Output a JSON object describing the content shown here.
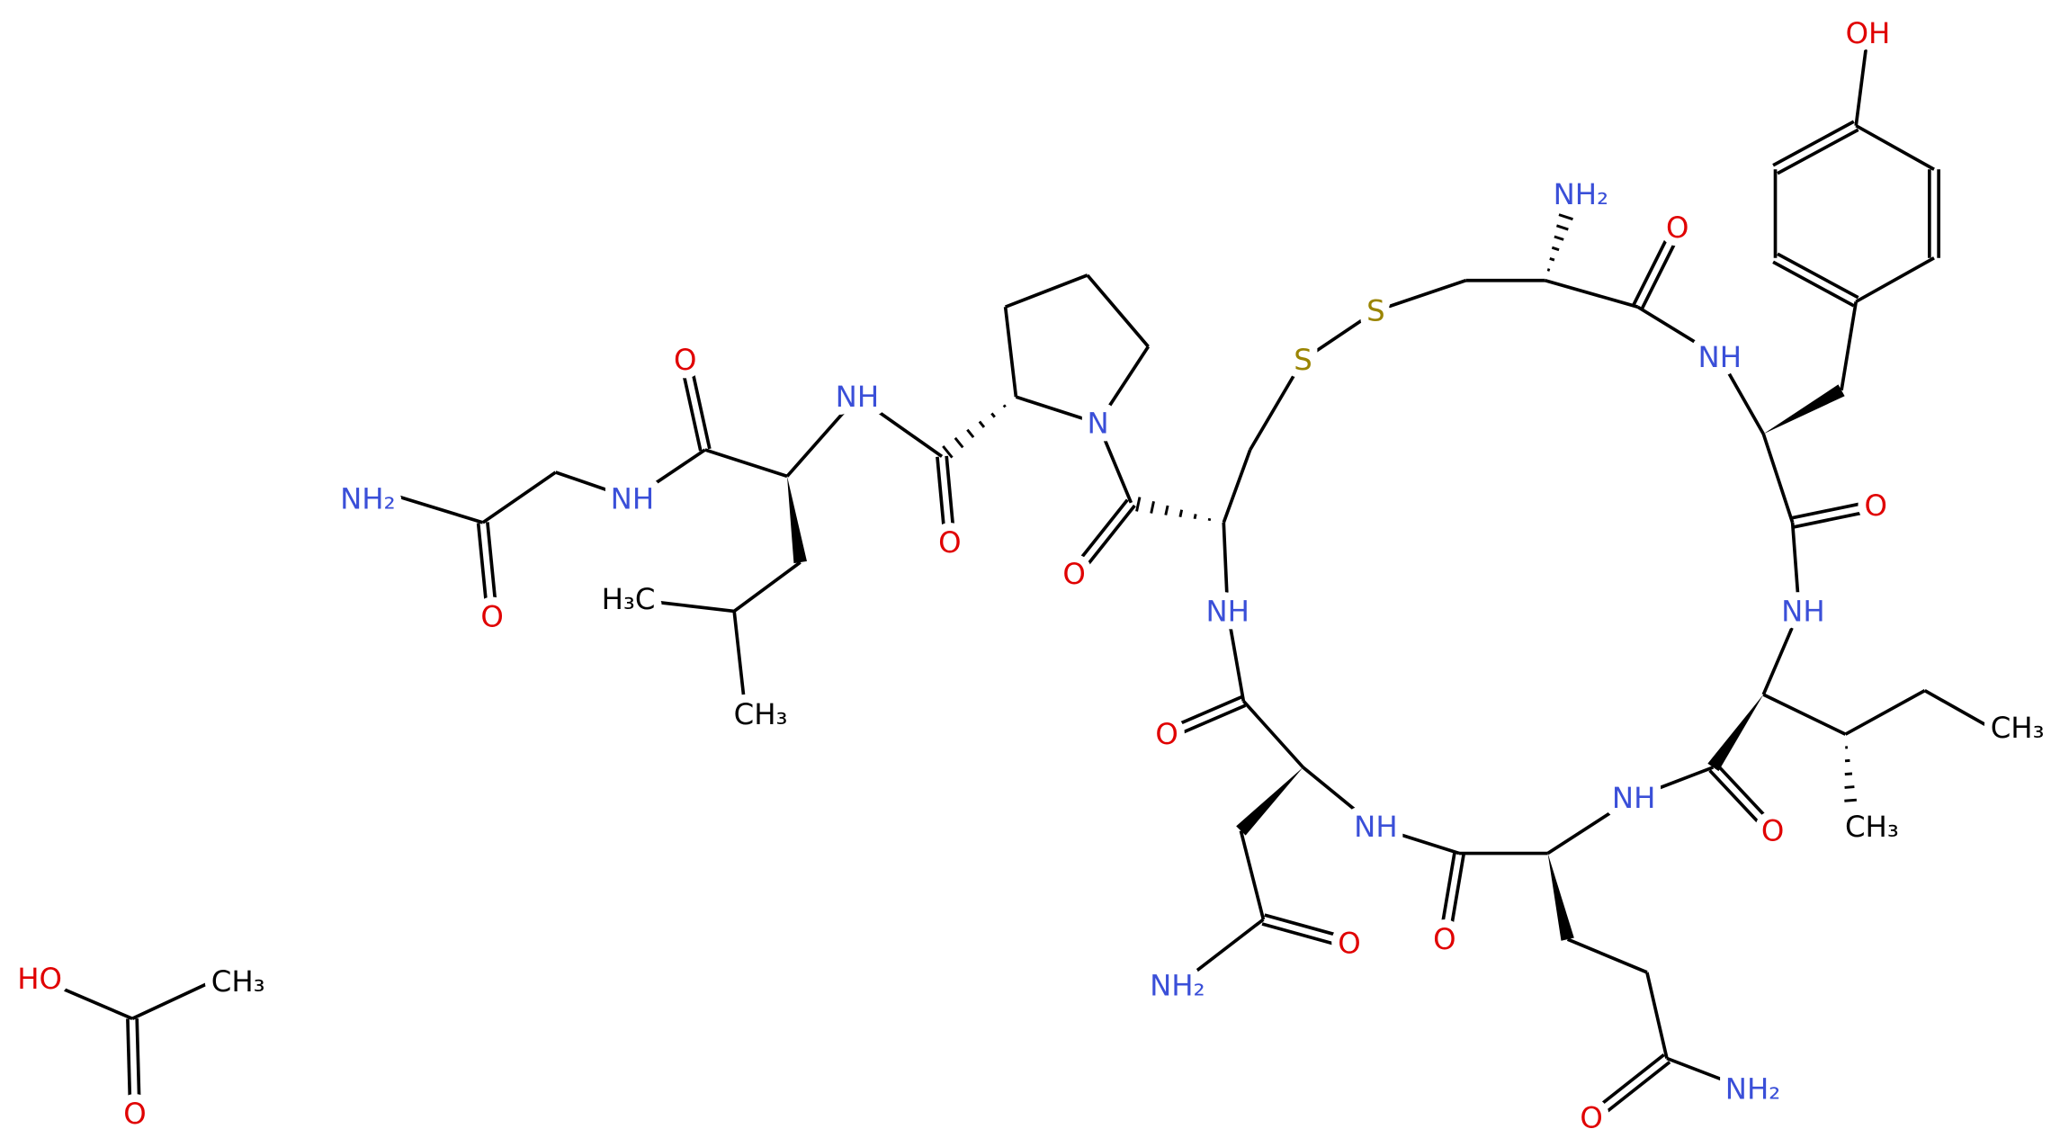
{
  "atoms": [
    {
      "label": "OH",
      "element": "O"
    },
    {
      "label": "NH₂",
      "element": "N"
    },
    {
      "label": "O",
      "element": "O"
    },
    {
      "label": "S",
      "element": "S"
    },
    {
      "label": "S",
      "element": "S"
    },
    {
      "label": "NH",
      "element": "N"
    },
    {
      "label": "O",
      "element": "O"
    },
    {
      "label": "NH",
      "element": "N"
    },
    {
      "label": "CH₃",
      "element": "C"
    },
    {
      "label": "CH₃",
      "element": "C"
    },
    {
      "label": "O",
      "element": "O"
    },
    {
      "label": "NH",
      "element": "N"
    },
    {
      "label": "NH",
      "element": "N"
    },
    {
      "label": "O",
      "element": "O"
    },
    {
      "label": "NH₂",
      "element": "N"
    },
    {
      "label": "O",
      "element": "O"
    },
    {
      "label": "NH₂",
      "element": "N"
    },
    {
      "label": "O",
      "element": "O"
    },
    {
      "label": "O",
      "element": "O"
    },
    {
      "label": "NH",
      "element": "N"
    },
    {
      "label": "O",
      "element": "O"
    },
    {
      "label": "N",
      "element": "N"
    },
    {
      "label": "O",
      "element": "O"
    },
    {
      "label": "NH",
      "element": "N"
    },
    {
      "label": "O",
      "element": "O"
    },
    {
      "label": "NH",
      "element": "N"
    },
    {
      "label": "NH₂",
      "element": "N"
    },
    {
      "label": "O",
      "element": "O"
    },
    {
      "label": "H₃C",
      "element": "C"
    },
    {
      "label": "CH₃",
      "element": "C"
    },
    {
      "label": "HO",
      "element": "O"
    },
    {
      "label": "CH₃",
      "element": "C"
    },
    {
      "label": "O",
      "element": "O"
    }
  ]
}
